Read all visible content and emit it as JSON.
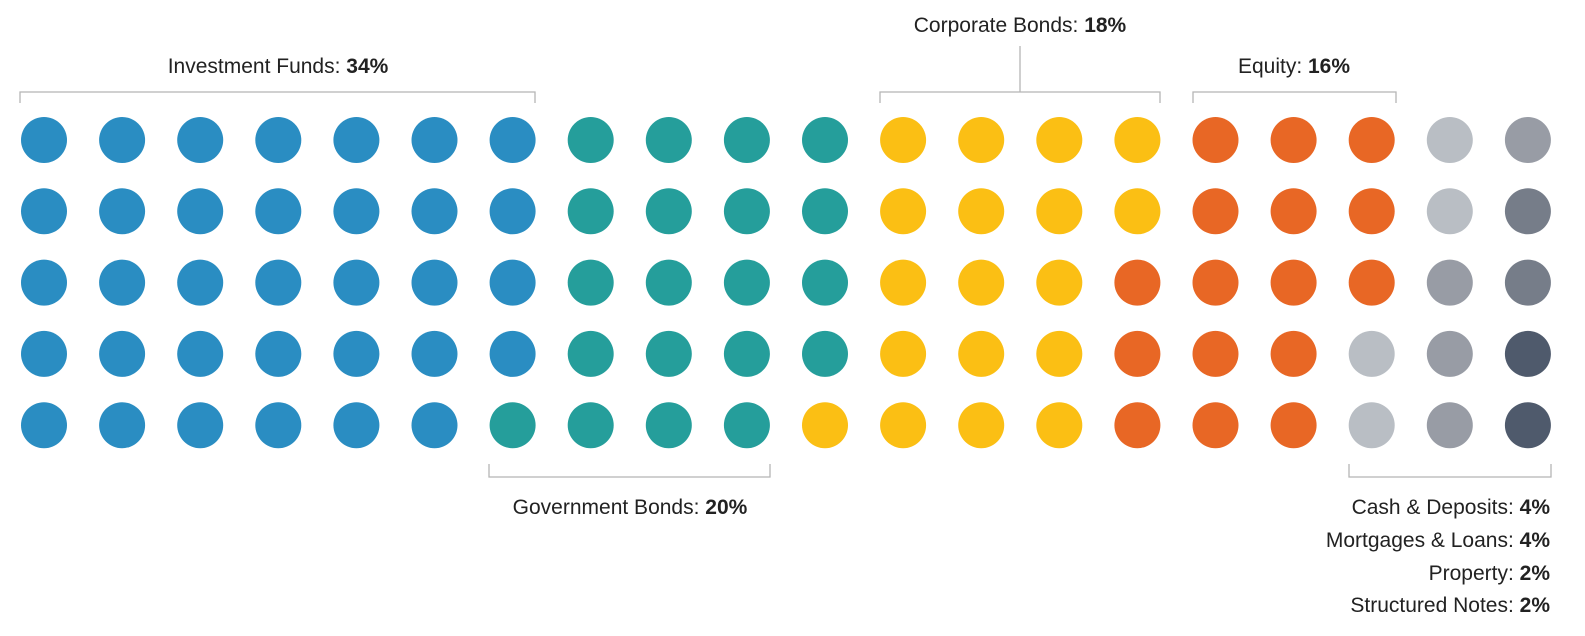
{
  "chart_data": {
    "type": "waffle",
    "title": "",
    "unit": "%",
    "rows": 5,
    "columns": 20,
    "series": [
      {
        "name": "Investment Funds",
        "value": 34,
        "color": "#2a8dc2"
      },
      {
        "name": "Government Bonds",
        "value": 20,
        "color": "#259e9b"
      },
      {
        "name": "Corporate Bonds",
        "value": 18,
        "color": "#fbbf14"
      },
      {
        "name": "Equity",
        "value": 16,
        "color": "#e86725"
      },
      {
        "name": "Cash & Deposits",
        "value": 4,
        "color": "#b9bec4"
      },
      {
        "name": "Mortgages & Loans",
        "value": 4,
        "color": "#989ca5"
      },
      {
        "name": "Property",
        "value": 2,
        "color": "#767d89"
      },
      {
        "name": "Structured Notes",
        "value": 2,
        "color": "#4f5a6c"
      }
    ],
    "labels": {
      "investment_funds": {
        "name": "Investment Funds",
        "value": "34%"
      },
      "government_bonds": {
        "name": "Government Bonds",
        "value": "20%"
      },
      "corporate_bonds": {
        "name": "Corporate Bonds",
        "value": "18%"
      },
      "equity": {
        "name": "Equity",
        "value": "16%"
      },
      "cash_deposits": {
        "name": "Cash & Deposits",
        "value": "4%"
      },
      "mortgages_loans": {
        "name": "Mortgages & Loans",
        "value": "4%"
      },
      "property": {
        "name": "Property",
        "value": "2%"
      },
      "structured_notes": {
        "name": "Structured Notes",
        "value": "2%"
      }
    }
  }
}
